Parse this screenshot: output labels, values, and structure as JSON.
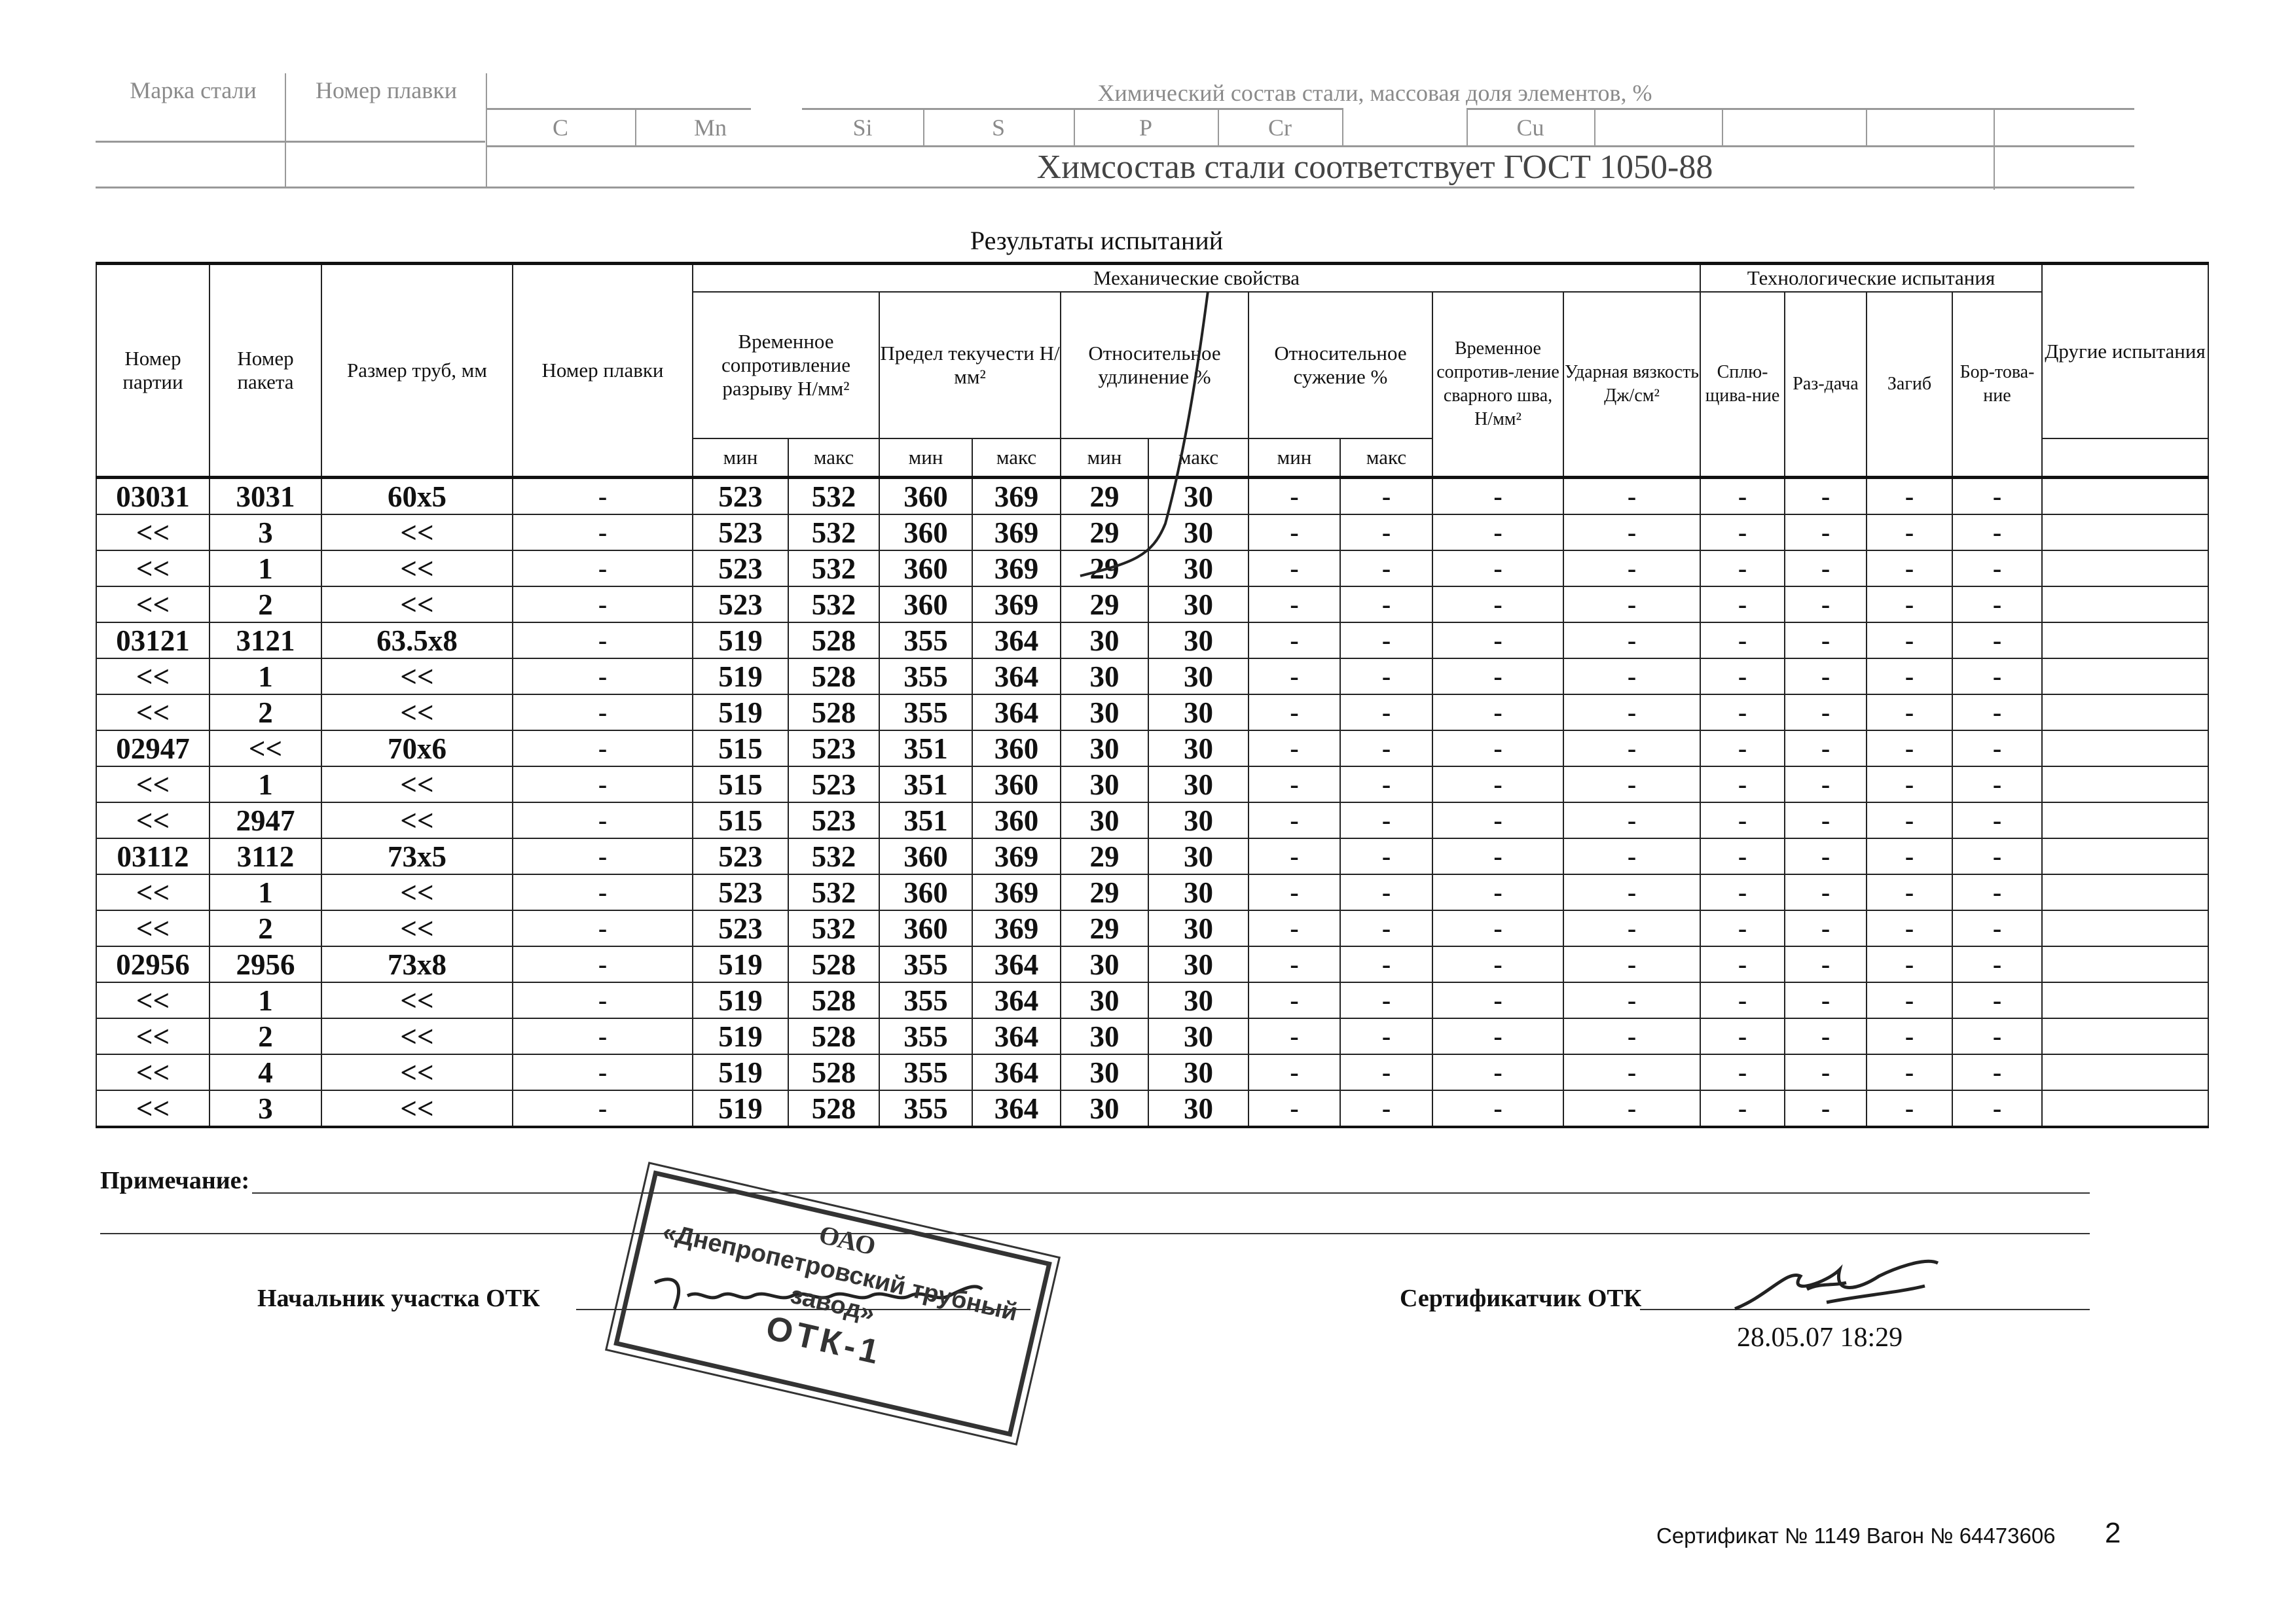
{
  "chem": {
    "grade_label": "Марка стали",
    "heat_label": "Номер плавки",
    "title": "Химический состав стали, массовая доля элементов, %",
    "elements": [
      "C",
      "Mn",
      "Si",
      "S",
      "P",
      "Cr",
      "Cu"
    ],
    "conformity": "Химсостав стали соответствует ГОСТ 1050-88"
  },
  "results": {
    "title": "Результаты испытаний",
    "headers": {
      "batch": "Номер партии",
      "package": "Номер пакета",
      "size": "Размер труб, мм",
      "heat": "Номер плавки",
      "mechanical": "Механические свойства",
      "technological": "Технологические испытания",
      "tensile": "Временное сопротивление разрыву Н/мм²",
      "yield": "Предел текучести Н/мм²",
      "elongation": "Относительное удлинение %",
      "reduction": "Относительное сужение %",
      "weld": "Временное сопротив-ление сварного шва, Н/мм²",
      "impact": "Ударная вязкость Дж/см²",
      "flatten": "Сплю-щива-ние",
      "expand": "Раз-дача",
      "bend": "Загиб",
      "flange": "Бор-това-ние",
      "other": "Другие испытания",
      "min": "мин",
      "max": "макс"
    },
    "rows": [
      [
        "03031",
        "3031",
        "60x5",
        "-",
        "523",
        "532",
        "360",
        "369",
        "29",
        "30",
        "-",
        "-",
        "-",
        "-",
        "-",
        "-",
        "-",
        "-",
        ""
      ],
      [
        "<<",
        "3",
        "<<",
        "-",
        "523",
        "532",
        "360",
        "369",
        "29",
        "30",
        "-",
        "-",
        "-",
        "-",
        "-",
        "-",
        "-",
        "-",
        ""
      ],
      [
        "<<",
        "1",
        "<<",
        "-",
        "523",
        "532",
        "360",
        "369",
        "29",
        "30",
        "-",
        "-",
        "-",
        "-",
        "-",
        "-",
        "-",
        "-",
        ""
      ],
      [
        "<<",
        "2",
        "<<",
        "-",
        "523",
        "532",
        "360",
        "369",
        "29",
        "30",
        "-",
        "-",
        "-",
        "-",
        "-",
        "-",
        "-",
        "-",
        ""
      ],
      [
        "03121",
        "3121",
        "63.5x8",
        "-",
        "519",
        "528",
        "355",
        "364",
        "30",
        "30",
        "-",
        "-",
        "-",
        "-",
        "-",
        "-",
        "-",
        "-",
        ""
      ],
      [
        "<<",
        "1",
        "<<",
        "-",
        "519",
        "528",
        "355",
        "364",
        "30",
        "30",
        "-",
        "-",
        "-",
        "-",
        "-",
        "-",
        "-",
        "-",
        ""
      ],
      [
        "<<",
        "2",
        "<<",
        "-",
        "519",
        "528",
        "355",
        "364",
        "30",
        "30",
        "-",
        "-",
        "-",
        "-",
        "-",
        "-",
        "-",
        "-",
        ""
      ],
      [
        "02947",
        "<<",
        "70x6",
        "-",
        "515",
        "523",
        "351",
        "360",
        "30",
        "30",
        "-",
        "-",
        "-",
        "-",
        "-",
        "-",
        "-",
        "-",
        ""
      ],
      [
        "<<",
        "1",
        "<<",
        "-",
        "515",
        "523",
        "351",
        "360",
        "30",
        "30",
        "-",
        "-",
        "-",
        "-",
        "-",
        "-",
        "-",
        "-",
        ""
      ],
      [
        "<<",
        "2947",
        "<<",
        "-",
        "515",
        "523",
        "351",
        "360",
        "30",
        "30",
        "-",
        "-",
        "-",
        "-",
        "-",
        "-",
        "-",
        "-",
        ""
      ],
      [
        "03112",
        "3112",
        "73x5",
        "-",
        "523",
        "532",
        "360",
        "369",
        "29",
        "30",
        "-",
        "-",
        "-",
        "-",
        "-",
        "-",
        "-",
        "-",
        ""
      ],
      [
        "<<",
        "1",
        "<<",
        "-",
        "523",
        "532",
        "360",
        "369",
        "29",
        "30",
        "-",
        "-",
        "-",
        "-",
        "-",
        "-",
        "-",
        "-",
        ""
      ],
      [
        "<<",
        "2",
        "<<",
        "-",
        "523",
        "532",
        "360",
        "369",
        "29",
        "30",
        "-",
        "-",
        "-",
        "-",
        "-",
        "-",
        "-",
        "-",
        ""
      ],
      [
        "02956",
        "2956",
        "73x8",
        "-",
        "519",
        "528",
        "355",
        "364",
        "30",
        "30",
        "-",
        "-",
        "-",
        "-",
        "-",
        "-",
        "-",
        "-",
        ""
      ],
      [
        "<<",
        "1",
        "<<",
        "-",
        "519",
        "528",
        "355",
        "364",
        "30",
        "30",
        "-",
        "-",
        "-",
        "-",
        "-",
        "-",
        "-",
        "-",
        ""
      ],
      [
        "<<",
        "2",
        "<<",
        "-",
        "519",
        "528",
        "355",
        "364",
        "30",
        "30",
        "-",
        "-",
        "-",
        "-",
        "-",
        "-",
        "-",
        "-",
        ""
      ],
      [
        "<<",
        "4",
        "<<",
        "-",
        "519",
        "528",
        "355",
        "364",
        "30",
        "30",
        "-",
        "-",
        "-",
        "-",
        "-",
        "-",
        "-",
        "-",
        ""
      ],
      [
        "<<",
        "3",
        "<<",
        "-",
        "519",
        "528",
        "355",
        "364",
        "30",
        "30",
        "-",
        "-",
        "-",
        "-",
        "-",
        "-",
        "-",
        "-",
        ""
      ]
    ]
  },
  "footer": {
    "note_label": "Примечание:",
    "chief_label": "Начальник участка ОТК",
    "certifier_label": "Сертификатчик ОТК",
    "datetime": "28.05.07 18:29",
    "certificate": "Сертификат № 1149 Вагон № 64473606",
    "page_number": "2"
  },
  "stamp": {
    "line1": "ОАО",
    "line2": "«Днепропетровский трубный",
    "line3": "завод»",
    "line4": "ОТК-1"
  }
}
